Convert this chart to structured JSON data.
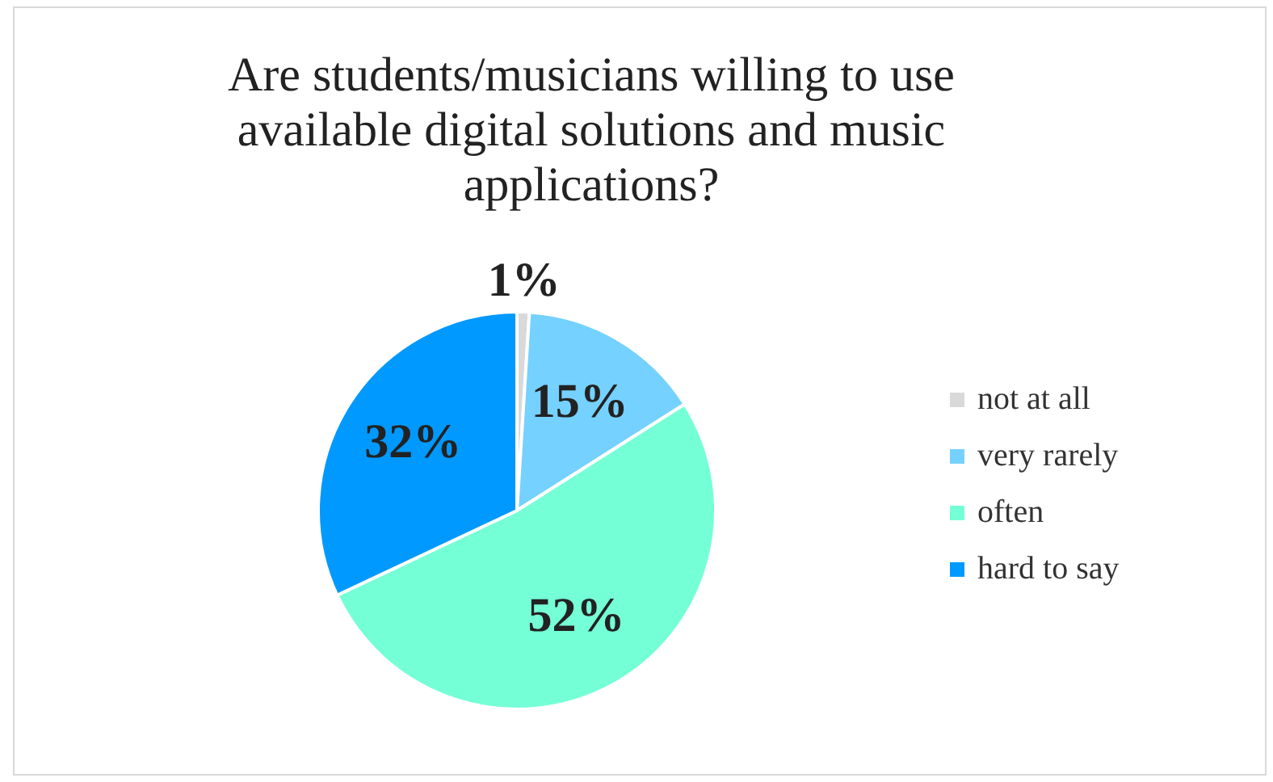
{
  "chart_data": {
    "type": "pie",
    "title": "Are students/musicians willing to use available digital solutions and music applications?",
    "categories": [
      "not at all",
      "very rarely",
      "often",
      "hard to say"
    ],
    "values": [
      1,
      15,
      52,
      32
    ],
    "colors": [
      "#d9d9d9",
      "#75d1ff",
      "#75ffd6",
      "#0099ff"
    ],
    "value_labels": [
      "1%",
      "15%",
      "52%",
      "32%"
    ],
    "legend": "right"
  }
}
